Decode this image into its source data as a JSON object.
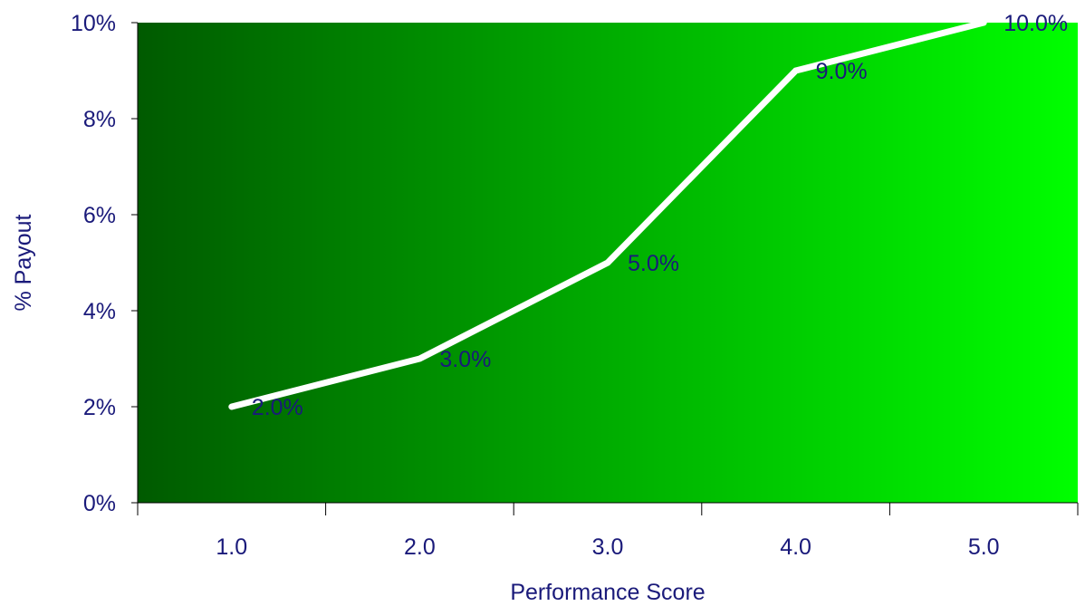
{
  "chart_data": {
    "type": "line",
    "title": "",
    "xlabel": "Performance Score",
    "ylabel": "% Payout",
    "x": [
      1.0,
      2.0,
      3.0,
      4.0,
      5.0
    ],
    "x_tick_labels": [
      "1.0",
      "2.0",
      "3.0",
      "4.0",
      "5.0"
    ],
    "series": [
      {
        "values": [
          2.0,
          3.0,
          5.0,
          9.0,
          10.0
        ],
        "data_labels": [
          "2.0%",
          "3.0%",
          "5.0%",
          "9.0%",
          "10.0%"
        ],
        "color": "#ffffff"
      }
    ],
    "ylim": [
      0,
      10
    ],
    "y_ticks": [
      0,
      2,
      4,
      6,
      8,
      10
    ],
    "y_tick_labels": [
      "0%",
      "2%",
      "4%",
      "6%",
      "8%",
      "10%"
    ],
    "grid": false,
    "legend": "none",
    "colors": {
      "background_gradient_start": "#005a00",
      "background_gradient_end": "#00ff00",
      "text": "#1a1a7a",
      "axis": "#000000"
    }
  }
}
